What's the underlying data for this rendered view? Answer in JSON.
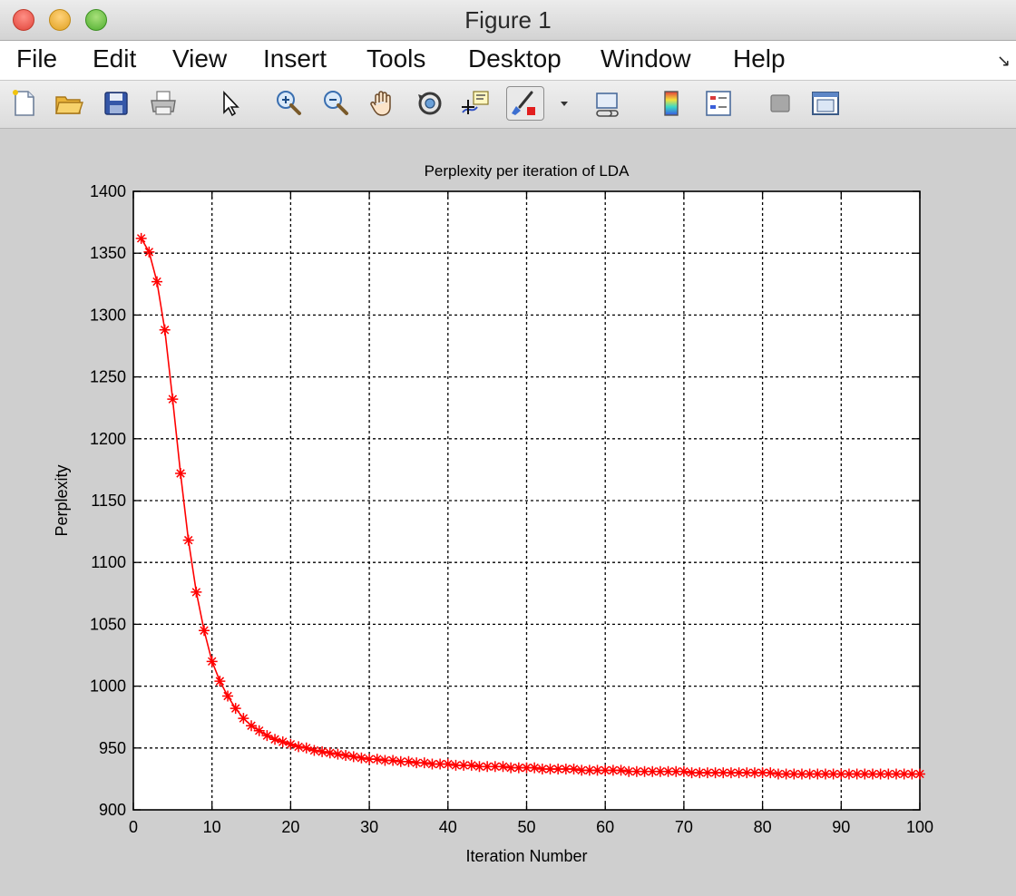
{
  "window": {
    "title": "Figure 1"
  },
  "menu": {
    "items": [
      "File",
      "Edit",
      "View",
      "Insert",
      "Tools",
      "Desktop",
      "Window",
      "Help"
    ]
  },
  "toolbar": {
    "buttons": [
      "new-figure-icon",
      "open-file-icon",
      "save-icon",
      "print-icon",
      "pointer-icon",
      "zoom-in-icon",
      "zoom-out-icon",
      "pan-hand-icon",
      "rotate-3d-icon",
      "data-cursor-icon",
      "brush-icon",
      "link-plot-icon",
      "colorbar-icon",
      "legend-icon",
      "hide-plot-tools-icon",
      "show-plot-tools-icon"
    ]
  },
  "chart_data": {
    "type": "line",
    "title": "Perplexity per iteration of LDA",
    "xlabel": "Iteration Number",
    "ylabel": "Perplexity",
    "xlim": [
      0,
      100
    ],
    "ylim": [
      900,
      1400
    ],
    "xticks": [
      0,
      10,
      20,
      30,
      40,
      50,
      60,
      70,
      80,
      90,
      100
    ],
    "yticks": [
      900,
      950,
      1000,
      1050,
      1100,
      1150,
      1200,
      1250,
      1300,
      1350,
      1400
    ],
    "grid": true,
    "line_color": "#ff0000",
    "marker": "asterisk",
    "x": [
      1,
      2,
      3,
      4,
      5,
      6,
      7,
      8,
      9,
      10,
      11,
      12,
      13,
      14,
      15,
      16,
      17,
      18,
      19,
      20,
      21,
      22,
      23,
      24,
      25,
      26,
      27,
      28,
      29,
      30,
      31,
      32,
      33,
      34,
      35,
      36,
      37,
      38,
      39,
      40,
      41,
      42,
      43,
      44,
      45,
      46,
      47,
      48,
      49,
      50,
      51,
      52,
      53,
      54,
      55,
      56,
      57,
      58,
      59,
      60,
      61,
      62,
      63,
      64,
      65,
      66,
      67,
      68,
      69,
      70,
      71,
      72,
      73,
      74,
      75,
      76,
      77,
      78,
      79,
      80,
      81,
      82,
      83,
      84,
      85,
      86,
      87,
      88,
      89,
      90,
      91,
      92,
      93,
      94,
      95,
      96,
      97,
      98,
      99,
      100
    ],
    "y": [
      1362,
      1351,
      1327,
      1288,
      1232,
      1172,
      1118,
      1076,
      1045,
      1020,
      1004,
      992,
      982,
      974,
      968,
      964,
      960,
      957,
      955,
      953,
      951,
      950,
      948,
      947,
      946,
      945,
      944,
      943,
      942,
      941,
      941,
      940,
      940,
      939,
      939,
      938,
      938,
      937,
      937,
      937,
      936,
      936,
      936,
      935,
      935,
      935,
      935,
      934,
      934,
      934,
      934,
      933,
      933,
      933,
      933,
      933,
      932,
      932,
      932,
      932,
      932,
      932,
      931,
      931,
      931,
      931,
      931,
      931,
      931,
      931,
      930,
      930,
      930,
      930,
      930,
      930,
      930,
      930,
      930,
      930,
      930,
      929,
      929,
      929,
      929,
      929,
      929,
      929,
      929,
      929,
      929,
      929,
      929,
      929,
      929,
      929,
      929,
      929,
      929,
      929
    ]
  }
}
